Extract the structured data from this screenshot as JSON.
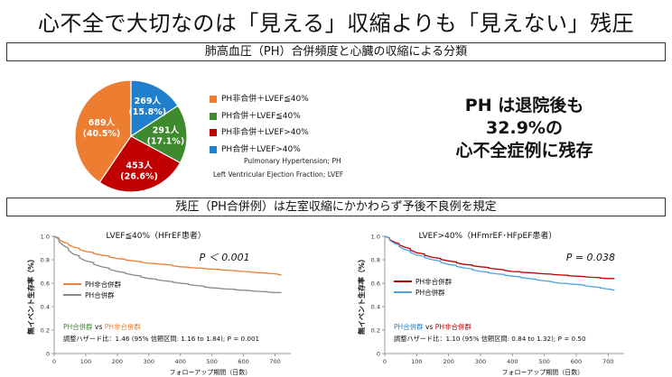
{
  "title": "心不全で大切なのは「見える」収縮よりも「見えない」残圧",
  "banner_top": "肺高血圧（PH）合併頻度と心臓の収縮による分類",
  "banner_bottom": "残圧（PH合併例）は左室収縮にかかわらず予後不良例を規定",
  "callout": {
    "line1": "PH は退院後も",
    "line2": "32.9%の",
    "line3": "心不全症例に残存"
  },
  "definitions": {
    "line1": "Pulmonary Hypertension; PH",
    "line2": "Left Ventricular Ejection Fraction; LVEF"
  },
  "colors": {
    "orange": "#ed7d31",
    "green": "#3f8a2f",
    "red": "#c00000",
    "blue": "#1f7fcc",
    "gray": "#888888",
    "lightblue": "#4aa3df"
  },
  "chart_data": [
    {
      "type": "pie",
      "slices": [
        {
          "label": "PH非合併＋LVEF≦40%",
          "count": "689人",
          "percent": "(40.5%)",
          "value": 40.5,
          "color": "#ed7d31"
        },
        {
          "label": "PH合併＋LVEF≦40%",
          "count": "291人",
          "percent": "(17.1%)",
          "value": 17.1,
          "color": "#3f8a2f"
        },
        {
          "label": "PH非合併＋LVEF>40%",
          "count": "453人",
          "percent": "(26.6%)",
          "value": 26.6,
          "color": "#c00000"
        },
        {
          "label": "PH合併＋LVEF>40%",
          "count": "269人",
          "percent": "(15.8%)",
          "value": 15.8,
          "color": "#1f7fcc"
        }
      ]
    },
    {
      "type": "line",
      "title": "LVEF≦40%（HFrEF患者）",
      "ylabel": "無イベント生存率（%）",
      "xlabel": "フォローアップ期間（日数）",
      "xlim": [
        0,
        750
      ],
      "ylim": [
        0,
        1.0
      ],
      "xticks": [
        "0",
        "100",
        "200",
        "300",
        "400",
        "500",
        "600",
        "700"
      ],
      "yticks": [
        "0",
        "0.2",
        "0.4",
        "0.6",
        "0.8",
        "1.0"
      ],
      "pvalue": "P ＜ 0.001",
      "comparison": {
        "a": "PH合併群",
        "vs": " vs ",
        "b": "PH非合併群"
      },
      "hazard": "調整ハザード比：1.46 (95% 信頼区間: 1.16 to 1.84); P = 0.001",
      "series": [
        {
          "name": "PH非合併群",
          "color": "#ed7d31",
          "x": [
            0,
            30,
            60,
            100,
            150,
            200,
            250,
            300,
            350,
            400,
            450,
            500,
            550,
            600,
            650,
            700,
            720
          ],
          "y": [
            1.0,
            0.95,
            0.91,
            0.87,
            0.84,
            0.81,
            0.79,
            0.77,
            0.76,
            0.74,
            0.73,
            0.72,
            0.71,
            0.7,
            0.69,
            0.68,
            0.67
          ]
        },
        {
          "name": "PH合併群",
          "color": "#888888",
          "x": [
            0,
            30,
            60,
            100,
            150,
            200,
            250,
            300,
            350,
            400,
            450,
            500,
            550,
            600,
            650,
            700,
            720
          ],
          "y": [
            1.0,
            0.92,
            0.85,
            0.79,
            0.74,
            0.7,
            0.67,
            0.64,
            0.62,
            0.6,
            0.58,
            0.56,
            0.55,
            0.54,
            0.53,
            0.52,
            0.52
          ]
        }
      ]
    },
    {
      "type": "line",
      "title": "LVEF>40%（HFmrEF･HFpEF患者）",
      "ylabel": "無イベント生存率（%）",
      "xlabel": "フォローアップ期間（日数）",
      "xlim": [
        0,
        750
      ],
      "ylim": [
        0,
        1.0
      ],
      "xticks": [
        "0",
        "100",
        "200",
        "300",
        "400",
        "500",
        "600",
        "700"
      ],
      "yticks": [
        "0",
        "0.2",
        "0.4",
        "0.6",
        "0.8",
        "1.0"
      ],
      "pvalue": "P = 0.038",
      "comparison": {
        "a": "PH合併群",
        "vs": " vs ",
        "b": "PH非合併群"
      },
      "hazard": "調整ハザード比：1.10 (95% 信頼区間: 0.84 to 1.32); P = 0.50",
      "series": [
        {
          "name": "PH非合併群",
          "color": "#c00000",
          "x": [
            0,
            30,
            60,
            100,
            150,
            200,
            250,
            300,
            350,
            400,
            450,
            500,
            550,
            600,
            650,
            700,
            720
          ],
          "y": [
            1.0,
            0.95,
            0.91,
            0.86,
            0.82,
            0.79,
            0.76,
            0.74,
            0.72,
            0.7,
            0.69,
            0.68,
            0.67,
            0.66,
            0.65,
            0.64,
            0.64
          ]
        },
        {
          "name": "PH合併群",
          "color": "#4aa3df",
          "x": [
            0,
            30,
            60,
            100,
            150,
            200,
            250,
            300,
            350,
            400,
            450,
            500,
            550,
            600,
            650,
            700,
            720
          ],
          "y": [
            1.0,
            0.94,
            0.89,
            0.84,
            0.8,
            0.76,
            0.73,
            0.7,
            0.68,
            0.66,
            0.64,
            0.62,
            0.6,
            0.59,
            0.57,
            0.55,
            0.54
          ]
        }
      ]
    }
  ]
}
